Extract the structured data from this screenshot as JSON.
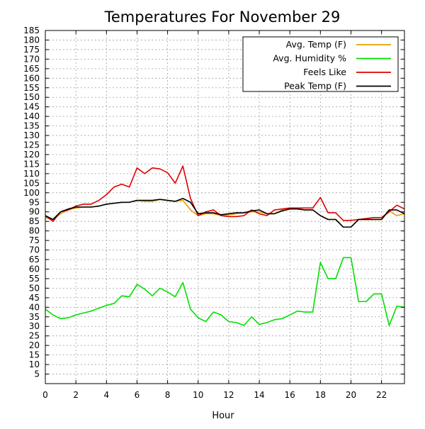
{
  "chart_data": {
    "type": "line",
    "title": "Temperatures For November 29",
    "xlabel": "Hour",
    "ylabel": "",
    "xlim": [
      0,
      23.5
    ],
    "ylim": [
      0,
      185
    ],
    "grid": true,
    "legend_position": "top-right",
    "x_ticks": [
      0,
      2,
      4,
      6,
      8,
      10,
      12,
      14,
      16,
      18,
      20,
      22
    ],
    "y_ticks": [
      5,
      10,
      15,
      20,
      25,
      30,
      35,
      40,
      45,
      50,
      55,
      60,
      65,
      70,
      75,
      80,
      85,
      90,
      95,
      100,
      105,
      110,
      115,
      120,
      125,
      130,
      135,
      140,
      145,
      150,
      155,
      160,
      165,
      170,
      175,
      180,
      185
    ],
    "x": [
      0,
      0.5,
      1,
      1.5,
      2,
      2.5,
      3,
      3.5,
      4,
      4.5,
      5,
      5.5,
      6,
      6.5,
      7,
      7.5,
      8,
      8.5,
      9,
      9.5,
      10,
      10.5,
      11,
      11.5,
      12,
      12.5,
      13,
      13.5,
      14,
      14.5,
      15,
      15.5,
      16,
      16.5,
      17,
      17.5,
      18,
      18.5,
      19,
      19.5,
      20,
      20.5,
      21,
      21.5,
      22,
      22.5,
      23,
      23.5
    ],
    "series": [
      {
        "name": "Avg. Temp (F)",
        "color": "#e69f00",
        "values": [
          87,
          86,
          89,
          91,
          92,
          92.5,
          92.5,
          93,
          94,
          94.5,
          95,
          95,
          96,
          95.5,
          95.5,
          96.5,
          96,
          95.5,
          96,
          91,
          88,
          89,
          89,
          88,
          88.5,
          89,
          89.5,
          90,
          90,
          89,
          89,
          91,
          91.5,
          91.5,
          91,
          91,
          88,
          86,
          86,
          82,
          82,
          86,
          86,
          86,
          86,
          90.5,
          88,
          89
        ]
      },
      {
        "name": "Avg. Humidity %",
        "color": "#00e000",
        "values": [
          39,
          36,
          34,
          34.5,
          36,
          37,
          38,
          39.5,
          41,
          42,
          46,
          45.5,
          52,
          49.5,
          46,
          50,
          48,
          45.5,
          53,
          39,
          34.5,
          32.5,
          37.5,
          36,
          32.5,
          32,
          30.5,
          35,
          31,
          32,
          33.5,
          34,
          36,
          38,
          37.5,
          37.5,
          63.5,
          55,
          55,
          66,
          66,
          43,
          43,
          47,
          47,
          30.5,
          40.5,
          40
        ]
      },
      {
        "name": "Feels Like",
        "color": "#e00000",
        "values": [
          88,
          85,
          90,
          91,
          93,
          94,
          94,
          96,
          99,
          103,
          104.5,
          103,
          113,
          110,
          113,
          112.5,
          110.5,
          105,
          114,
          97,
          88,
          90,
          91,
          88,
          87.5,
          87.5,
          88,
          91,
          89,
          88,
          91,
          91.5,
          92,
          92,
          92,
          92,
          97.5,
          89.5,
          89.5,
          85.5,
          85.5,
          86,
          86.5,
          87,
          87,
          90,
          93.5,
          91.5
        ]
      },
      {
        "name": "Peak Temp (F)",
        "color": "#000000",
        "values": [
          88,
          86,
          90,
          91.5,
          92.5,
          92.5,
          92.5,
          93,
          94,
          94.5,
          95,
          95,
          96,
          96,
          96,
          96.5,
          96,
          95.5,
          97,
          95,
          89,
          89.5,
          89.5,
          88.5,
          89,
          89.5,
          89.5,
          90.5,
          91,
          89,
          89,
          90.5,
          91.5,
          91.5,
          91,
          91,
          88,
          86,
          86,
          82,
          82,
          86,
          86,
          86,
          86,
          91,
          91,
          89
        ]
      }
    ]
  }
}
